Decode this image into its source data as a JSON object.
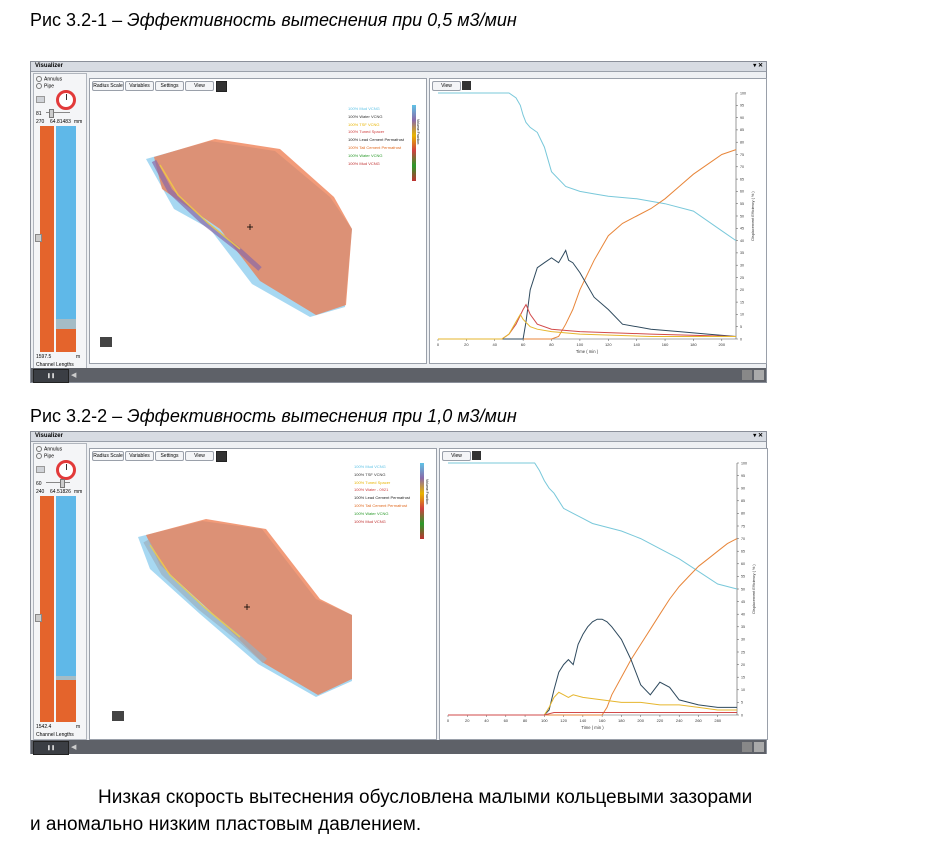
{
  "caption1": {
    "prefix": "Рис 3.2-1 – ",
    "title": "Эффективность вытеснения при 0,5 м3/мин"
  },
  "caption2": {
    "prefix": "Рис 3.2-2 – ",
    "title": "Эффективность вытеснения при 1,0 м3/мин"
  },
  "paragraph": {
    "line1": "Низкая скорость вытеснения обусловлена малыми кольцевыми зазорами",
    "line2": "и аномально низким пластовым давлением."
  },
  "panels": [
    {
      "window_title": "Visualizer",
      "radio_annulus": "Annulus",
      "radio_pipe": "Pipe",
      "angle_value": "81",
      "depth_left": "270",
      "depth_right": "64.81483",
      "depth_unit": "mm",
      "bottom_value": "1597.5",
      "bottom_unit": "m",
      "channel_label": "Channel Lengths",
      "toolbar": [
        "Radius Scale",
        "Variables",
        "Settings",
        "View"
      ],
      "chart_view_button": "View",
      "legend_axis_label": "Volume Fraction",
      "legend": [
        {
          "pct": "100%",
          "name": "Mud VCNG",
          "color": "#5fc3e6"
        },
        {
          "pct": "100%",
          "name": "Water VCNG",
          "color": "#333333"
        },
        {
          "pct": "100%",
          "name": "TSF VCNG",
          "color": "#e8b400"
        },
        {
          "pct": "100%",
          "name": "Tuned Spacer",
          "color": "#d04040"
        },
        {
          "pct": "100%",
          "name": "Lead Cement Permafrost",
          "color": "#222222"
        },
        {
          "pct": "100%",
          "name": "Tail Cement Permafrost",
          "color": "#e06a20"
        },
        {
          "pct": "100%",
          "name": "Water VCNG",
          "color": "#2a9a2a"
        },
        {
          "pct": "100%",
          "name": "Mud VCNG",
          "color": "#c03030"
        }
      ]
    },
    {
      "window_title": "Visualizer",
      "radio_annulus": "Annulus",
      "radio_pipe": "Pipe",
      "angle_value": "60",
      "depth_left": "240",
      "depth_right": "64.51826",
      "depth_unit": "mm",
      "bottom_value": "1542.4",
      "bottom_unit": "m",
      "channel_label": "Channel Lengths",
      "toolbar": [
        "Radius Scale",
        "Variables",
        "Settings",
        "View"
      ],
      "chart_view_button": "View",
      "legend_axis_label": "Volume Fraction",
      "legend": [
        {
          "pct": "100%",
          "name": "Mud VCNG",
          "color": "#5fc3e6"
        },
        {
          "pct": "100%",
          "name": "TSF VCNG",
          "color": "#333333"
        },
        {
          "pct": "100%",
          "name": "Tuned Spacer",
          "color": "#e8b400"
        },
        {
          "pct": "100%",
          "name": "Water - 0921",
          "color": "#d04040"
        },
        {
          "pct": "100%",
          "name": "Lead Cement Permafrost",
          "color": "#222222"
        },
        {
          "pct": "100%",
          "name": "Tail Cement Permafrost",
          "color": "#e06a20"
        },
        {
          "pct": "100%",
          "name": "Water VCNG",
          "color": "#2a9a2a"
        },
        {
          "pct": "100%",
          "name": "Mud VCNG",
          "color": "#c03030"
        }
      ]
    }
  ],
  "chart_data": [
    {
      "type": "line",
      "xlabel": "Time ( min )",
      "ylabel": "Displacement Efficiency ( % )",
      "xlim": [
        0,
        210
      ],
      "ylim": [
        0,
        100
      ],
      "xticks": [
        0,
        20,
        40,
        60,
        80,
        100,
        120,
        140,
        160,
        180,
        200
      ],
      "yticks": [
        0,
        5,
        10,
        15,
        20,
        25,
        30,
        35,
        40,
        45,
        50,
        55,
        60,
        65,
        70,
        75,
        80,
        85,
        90,
        95,
        100
      ],
      "series": [
        {
          "color": "#79c8da",
          "x": [
            0,
            45,
            50,
            55,
            58,
            60,
            62,
            65,
            70,
            75,
            80,
            90,
            100,
            110,
            120,
            140,
            160,
            180,
            200,
            210
          ],
          "y": [
            100,
            100,
            100,
            98,
            95,
            91,
            88,
            86,
            84,
            78,
            68,
            62,
            60,
            59,
            58,
            57,
            55,
            52,
            44,
            40
          ]
        },
        {
          "color": "#e8863a",
          "x": [
            0,
            45,
            60,
            70,
            80,
            85,
            90,
            95,
            100,
            110,
            120,
            130,
            140,
            150,
            160,
            170,
            180,
            190,
            200,
            210
          ],
          "y": [
            0,
            0,
            0,
            0,
            0,
            1,
            6,
            12,
            20,
            32,
            42,
            47,
            50,
            53,
            57,
            62,
            67,
            71,
            75,
            77
          ]
        },
        {
          "color": "#2f4a5e",
          "x": [
            0,
            55,
            60,
            62,
            65,
            70,
            75,
            80,
            85,
            88,
            90,
            92,
            95,
            100,
            110,
            120,
            130,
            150,
            170,
            190,
            210
          ],
          "y": [
            0,
            0,
            0,
            7,
            20,
            29,
            31,
            33,
            31,
            34,
            36,
            32,
            31,
            27,
            17,
            12,
            6,
            4,
            3,
            2,
            1
          ]
        },
        {
          "color": "#d24a4a",
          "x": [
            0,
            45,
            50,
            55,
            60,
            62,
            65,
            70,
            80,
            100,
            150,
            210
          ],
          "y": [
            0,
            0,
            2,
            6,
            12,
            14,
            10,
            6,
            4,
            3,
            2,
            1
          ]
        },
        {
          "color": "#e6b62e",
          "x": [
            0,
            45,
            50,
            55,
            58,
            60,
            65,
            70,
            80,
            100,
            150,
            210
          ],
          "y": [
            0,
            0,
            2,
            7,
            10,
            8,
            5,
            4,
            3,
            2,
            1,
            1
          ]
        }
      ]
    },
    {
      "type": "line",
      "xlabel": "Time ( min )",
      "ylabel": "Displacement Efficiency ( % )",
      "xlim": [
        0,
        300
      ],
      "ylim": [
        0,
        100
      ],
      "xticks": [
        0,
        20,
        40,
        60,
        80,
        100,
        120,
        140,
        160,
        180,
        200,
        220,
        240,
        260,
        280
      ],
      "yticks": [
        0,
        5,
        10,
        15,
        20,
        25,
        30,
        35,
        40,
        45,
        50,
        55,
        60,
        65,
        70,
        75,
        80,
        85,
        90,
        95,
        100
      ],
      "series": [
        {
          "color": "#79c8da",
          "x": [
            0,
            85,
            90,
            95,
            100,
            105,
            110,
            115,
            120,
            130,
            140,
            150,
            160,
            180,
            200,
            220,
            240,
            260,
            280,
            300
          ],
          "y": [
            100,
            100,
            100,
            97,
            93,
            90,
            88,
            85,
            82,
            80,
            78,
            76,
            75,
            73,
            70,
            66,
            62,
            57,
            52,
            50
          ]
        },
        {
          "color": "#e8863a",
          "x": [
            0,
            100,
            130,
            150,
            160,
            165,
            170,
            180,
            190,
            200,
            210,
            220,
            230,
            240,
            250,
            260,
            270,
            280,
            290,
            300
          ],
          "y": [
            0,
            0,
            0,
            0,
            0,
            3,
            8,
            15,
            22,
            28,
            34,
            40,
            46,
            51,
            55,
            59,
            62,
            65,
            68,
            70
          ]
        },
        {
          "color": "#2f4a5e",
          "x": [
            0,
            100,
            105,
            110,
            115,
            120,
            125,
            130,
            135,
            140,
            145,
            150,
            155,
            160,
            165,
            170,
            180,
            190,
            200,
            210,
            220,
            230,
            240,
            250,
            260,
            280,
            300
          ],
          "y": [
            0,
            0,
            2,
            10,
            17,
            20,
            22,
            20,
            28,
            32,
            35,
            37,
            38,
            38,
            37,
            35,
            30,
            22,
            12,
            8,
            13,
            11,
            6,
            5,
            4,
            3,
            3
          ]
        },
        {
          "color": "#e6b62e",
          "x": [
            0,
            100,
            105,
            110,
            115,
            120,
            125,
            130,
            140,
            160,
            180,
            200,
            220,
            240,
            260,
            280,
            300
          ],
          "y": [
            0,
            0,
            3,
            7,
            9,
            8,
            7,
            8,
            7,
            6,
            5,
            5,
            4,
            4,
            3,
            2,
            2
          ]
        },
        {
          "color": "#d24a4a",
          "x": [
            0,
            100,
            110,
            130,
            160,
            200,
            250,
            300
          ],
          "y": [
            0,
            0,
            1,
            1,
            1,
            1,
            1,
            1
          ]
        }
      ]
    }
  ]
}
